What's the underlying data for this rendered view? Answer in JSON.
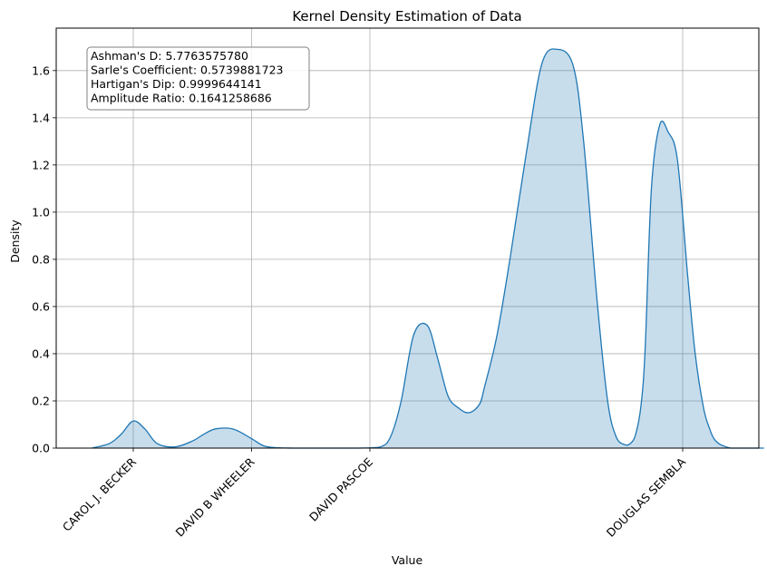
{
  "chart_data": {
    "type": "area",
    "title": "Kernel Density Estimation of Data",
    "xlabel": "Value",
    "ylabel": "Density",
    "ylim": [
      0,
      1.78
    ],
    "y_ticks": [
      "0.0",
      "0.2",
      "0.4",
      "0.6",
      "0.8",
      "1.0",
      "1.2",
      "1.4",
      "1.6"
    ],
    "x_ticks": [
      "CAROL J. BECKER",
      "DAVID B WHEELER",
      "DAVID PASCOE",
      "DOUGLAS SEMBLA"
    ],
    "grid": true,
    "stats_box": [
      "Ashman's D: 5.7763575780",
      "Sarle's Coefficient: 0.5739881723",
      "Hartigan's Dip: 0.9999644141",
      "Amplitude Ratio: 0.1641258686"
    ],
    "series": [
      {
        "x": [
          -0.35,
          -0.2,
          -0.1,
          0.0,
          0.1,
          0.2,
          0.35,
          0.5,
          0.6,
          0.7,
          0.85,
          1.0,
          1.1,
          1.2,
          1.35,
          1.5,
          1.7,
          1.9,
          2.1,
          2.2,
          2.3,
          2.42,
          2.55,
          2.65,
          2.75,
          2.85,
          2.95,
          3.05,
          3.1,
          3.22,
          3.35,
          3.5,
          3.65,
          3.8,
          3.95,
          4.05,
          4.18,
          4.28,
          4.36,
          4.44,
          4.5,
          4.55,
          4.6,
          4.64,
          4.7,
          4.78,
          4.86,
          4.95,
          5.05,
          5.12,
          5.2,
          5.26,
          5.3,
          5.35,
          5.4,
          5.46,
          5.52,
          5.6,
          5.7,
          5.78
        ],
        "y": [
          0.0,
          0.02,
          0.06,
          0.115,
          0.08,
          0.02,
          0.005,
          0.03,
          0.06,
          0.082,
          0.08,
          0.04,
          0.01,
          0.002,
          0.0,
          0.0,
          0.0,
          0.0,
          0.005,
          0.05,
          0.2,
          0.48,
          0.52,
          0.38,
          0.22,
          0.17,
          0.15,
          0.185,
          0.26,
          0.48,
          0.82,
          1.25,
          1.63,
          1.69,
          1.62,
          1.3,
          0.62,
          0.2,
          0.05,
          0.015,
          0.02,
          0.06,
          0.18,
          0.42,
          1.1,
          1.37,
          1.34,
          1.22,
          0.72,
          0.4,
          0.17,
          0.08,
          0.04,
          0.018,
          0.008,
          0.0,
          0.0,
          0.0,
          0.0,
          0.0
        ]
      }
    ],
    "colors": {
      "line": "#1f77b4",
      "fill": "#1f77b4",
      "grid": "#b0b0b0",
      "box_edge": "#808080"
    }
  }
}
